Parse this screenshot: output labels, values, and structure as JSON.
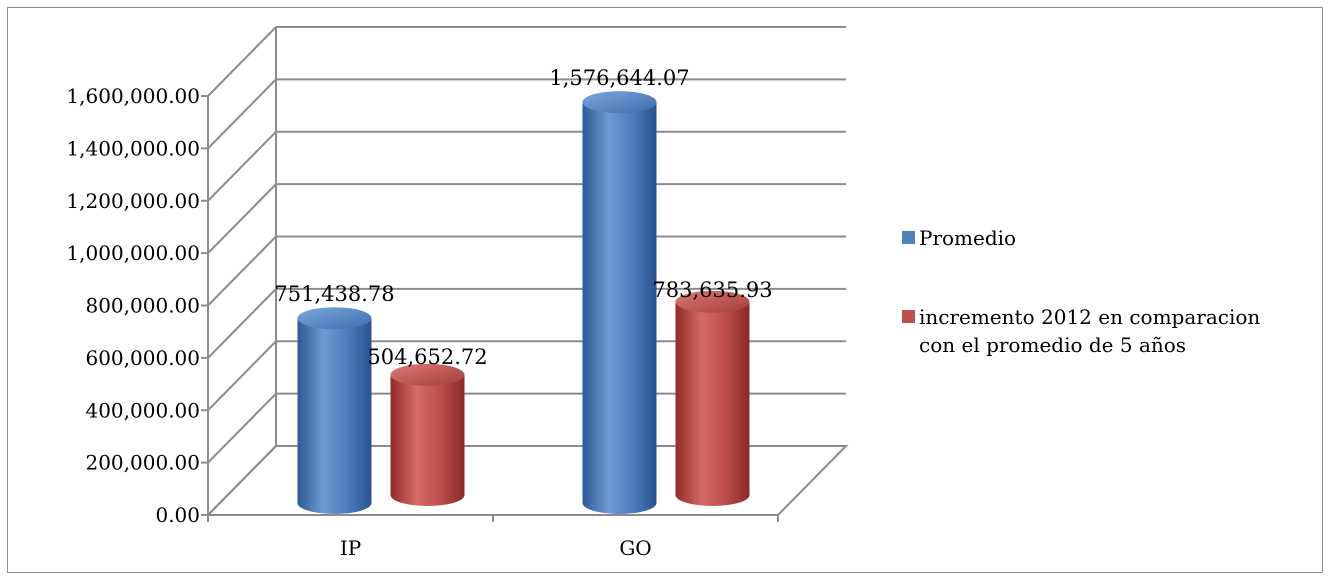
{
  "chart_data": {
    "type": "bar",
    "title": "",
    "xlabel": "",
    "ylabel": "",
    "categories": [
      "IP",
      "GO"
    ],
    "series": [
      {
        "name": "Promedio",
        "color": "#4F81BD",
        "values": [
          751438.78,
          1576644.07
        ],
        "labels": [
          "751,438.78",
          "1,576,644.07"
        ]
      },
      {
        "name": "incremento 2012 en comparacion con el promedio de 5 años",
        "name_lines": [
          "incremento 2012 en comparacion",
          "con el promedio de 5 años"
        ],
        "color": "#C0504D",
        "values": [
          504652.72,
          783635.93
        ],
        "labels": [
          "504,652.72",
          "783,635.93"
        ]
      }
    ],
    "ylim": [
      0,
      1600000
    ],
    "yticks": [
      0,
      200000,
      400000,
      600000,
      800000,
      1000000,
      1200000,
      1400000,
      1600000
    ],
    "ytick_labels": [
      "0.00",
      "200,000.00",
      "400,000.00",
      "600,000.00",
      "800,000.00",
      "1,000,000.00",
      "1,200,000.00",
      "1,400,000.00",
      "1,600,000.00"
    ],
    "grid": true,
    "legend_position": "right",
    "style": "3d-cylinder"
  }
}
